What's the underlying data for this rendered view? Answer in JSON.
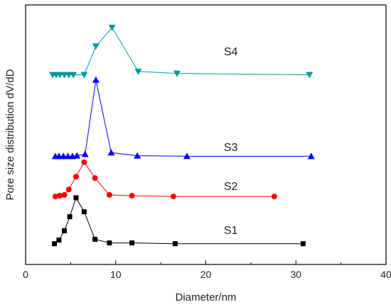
{
  "chart_data": {
    "type": "line",
    "title": "",
    "xlabel": "Diameter/nm",
    "ylabel": "Pore size distribution dV/dD",
    "xlim": [
      0,
      40
    ],
    "ylim": [
      0,
      1
    ],
    "x_ticks": [
      "0",
      "10",
      "20",
      "30",
      "40"
    ],
    "y_ticks_shown": false,
    "grid": false,
    "legend": "none",
    "annotations": [
      {
        "text": "S1",
        "series": "S1",
        "x": 22,
        "y": 0.134
      },
      {
        "text": "S2",
        "series": "S2",
        "x": 22,
        "y": 0.303
      },
      {
        "text": "S3",
        "series": "S3",
        "x": 22,
        "y": 0.453
      },
      {
        "text": "S4",
        "series": "S4",
        "x": 22,
        "y": 0.822
      }
    ],
    "series": [
      {
        "name": "S1",
        "color": "#000000",
        "marker": "square",
        "x": [
          3.2,
          3.7,
          4.3,
          4.9,
          5.6,
          6.5,
          7.7,
          9.3,
          11.8,
          16.6,
          30.8
        ],
        "y": [
          0.08,
          0.094,
          0.13,
          0.184,
          0.257,
          0.203,
          0.097,
          0.083,
          0.083,
          0.08,
          0.08
        ]
      },
      {
        "name": "S2",
        "color": "#ff0000",
        "marker": "circle",
        "x": [
          3.3,
          3.8,
          4.3,
          4.8,
          5.6,
          6.5,
          7.7,
          9.3,
          11.8,
          16.4,
          27.6
        ],
        "y": [
          0.262,
          0.265,
          0.268,
          0.289,
          0.338,
          0.394,
          0.333,
          0.268,
          0.265,
          0.262,
          0.262
        ]
      },
      {
        "name": "S3",
        "color": "#0000ff",
        "marker": "triangle-up",
        "x": [
          3.3,
          3.7,
          4.2,
          4.7,
          5.2,
          5.7,
          6.6,
          7.8,
          9.5,
          12.4,
          17.9,
          31.7
        ],
        "y": [
          0.417,
          0.417,
          0.417,
          0.417,
          0.417,
          0.419,
          0.425,
          0.711,
          0.431,
          0.419,
          0.417,
          0.417
        ]
      },
      {
        "name": "S4",
        "color": "#009999",
        "marker": "triangle-down",
        "x": [
          3.0,
          3.4,
          3.8,
          4.3,
          4.8,
          5.3,
          6.5,
          7.8,
          9.6,
          12.5,
          16.8,
          31.5
        ],
        "y": [
          0.731,
          0.731,
          0.731,
          0.731,
          0.731,
          0.731,
          0.731,
          0.841,
          0.913,
          0.744,
          0.736,
          0.731
        ]
      }
    ]
  }
}
